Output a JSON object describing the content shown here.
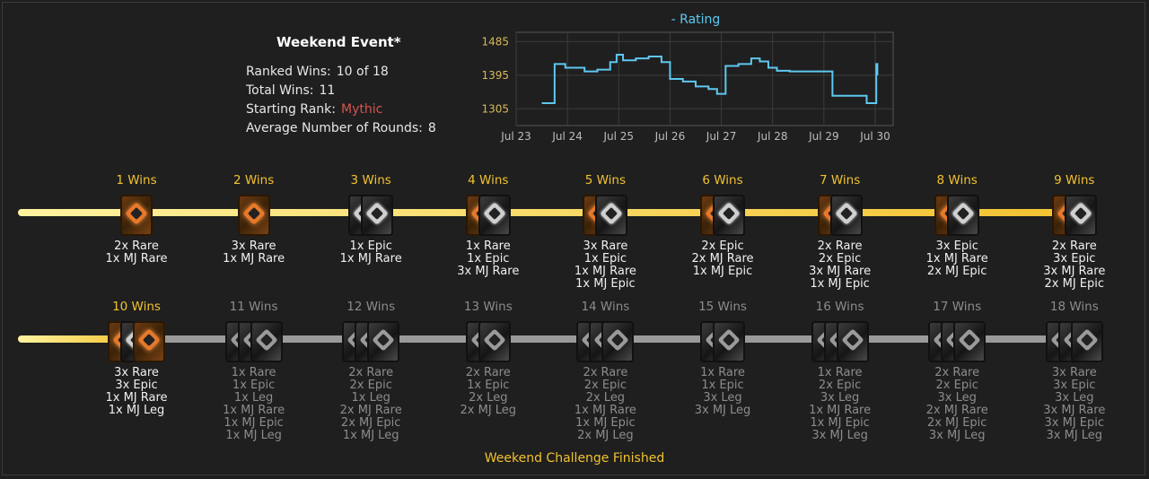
{
  "summary": {
    "title": "Weekend Event*",
    "ranked_wins_label": "Ranked Wins:",
    "ranked_wins_value": "10 of 18",
    "total_wins_label": "Total Wins:",
    "total_wins_value": "11",
    "starting_rank_label": "Starting Rank:",
    "starting_rank_value": "Mythic",
    "avg_rounds_label": "Average Number of Rounds:",
    "avg_rounds_value": "8"
  },
  "colors": {
    "accent_gold": "#f2c230",
    "rank_red": "#d9534f",
    "chart_line": "#5ec8f0",
    "track_done": "#f2c230",
    "track_todo": "#9a9a9a"
  },
  "chart_data": {
    "type": "line",
    "title": "",
    "series": [
      {
        "name": "Rating",
        "x": [
          "Jul 23 12:00",
          "Jul 23 18:00",
          "Jul 23 23:00",
          "Jul 24 02:00",
          "Jul 24 08:00",
          "Jul 24 14:00",
          "Jul 24 20:00",
          "Jul 24 23:00",
          "Jul 25 02:00",
          "Jul 25 08:00",
          "Jul 25 14:00",
          "Jul 25 20:00",
          "Jul 26 00:00",
          "Jul 26 06:00",
          "Jul 26 12:00",
          "Jul 26 18:00",
          "Jul 26 22:00",
          "Jul 27 02:00",
          "Jul 27 08:00",
          "Jul 27 14:00",
          "Jul 27 18:00",
          "Jul 27 22:00",
          "Jul 28 02:00",
          "Jul 28 08:00",
          "Jul 28 14:00",
          "Jul 28 20:00",
          "Jul 29 04:00",
          "Jul 29 12:00",
          "Jul 29 20:00",
          "Jul 30 00:00",
          "Jul 30 00:30",
          "Jul 30 01:00"
        ],
        "values": [
          1320,
          1425,
          1415,
          1415,
          1405,
          1410,
          1430,
          1450,
          1435,
          1440,
          1445,
          1430,
          1385,
          1378,
          1365,
          1358,
          1345,
          1420,
          1425,
          1440,
          1432,
          1415,
          1407,
          1405,
          1405,
          1405,
          1340,
          1340,
          1320,
          1320,
          1425,
          1395
        ]
      }
    ],
    "legend": {
      "entries": [
        "Rating"
      ],
      "placement": "top-center"
    },
    "x_ticks": [
      "Jul 23",
      "Jul 24",
      "Jul 25",
      "Jul 26",
      "Jul 27",
      "Jul 28",
      "Jul 29",
      "Jul 30"
    ],
    "y_ticks": [
      1305,
      1395,
      1485
    ],
    "ylim": [
      1260,
      1510
    ],
    "grid": true
  },
  "tracks": [
    {
      "milestones": [
        {
          "wins": "1 Wins",
          "state": "done",
          "packs": [
            "rare"
          ],
          "rewards": [
            "2x Rare",
            "1x MJ Rare"
          ]
        },
        {
          "wins": "2 Wins",
          "state": "done",
          "packs": [
            "rare"
          ],
          "rewards": [
            "3x Rare",
            "1x MJ Rare"
          ]
        },
        {
          "wins": "3 Wins",
          "state": "done",
          "packs": [
            "epic",
            "epic"
          ],
          "rewards": [
            "1x Epic",
            "1x MJ Rare"
          ]
        },
        {
          "wins": "4 Wins",
          "state": "done",
          "packs": [
            "rare",
            "epic"
          ],
          "rewards": [
            "1x Rare",
            "1x Epic",
            "3x MJ Rare"
          ]
        },
        {
          "wins": "5 Wins",
          "state": "done",
          "packs": [
            "rare",
            "epic"
          ],
          "rewards": [
            "3x Rare",
            "1x Epic",
            "1x MJ Rare",
            "1x MJ Epic"
          ]
        },
        {
          "wins": "6 Wins",
          "state": "done",
          "packs": [
            "rare",
            "epic"
          ],
          "rewards": [
            "2x Epic",
            "2x MJ Rare",
            "1x MJ Epic"
          ]
        },
        {
          "wins": "7 Wins",
          "state": "done",
          "packs": [
            "rare",
            "epic"
          ],
          "rewards": [
            "2x Rare",
            "2x Epic",
            "3x MJ Rare",
            "1x MJ Epic"
          ]
        },
        {
          "wins": "8 Wins",
          "state": "done",
          "packs": [
            "rare",
            "epic"
          ],
          "rewards": [
            "3x Epic",
            "1x MJ Rare",
            "2x MJ Epic"
          ]
        },
        {
          "wins": "9 Wins",
          "state": "done",
          "packs": [
            "rare",
            "epic"
          ],
          "rewards": [
            "2x Rare",
            "3x Epic",
            "3x MJ Rare",
            "2x MJ Epic"
          ]
        }
      ]
    },
    {
      "milestones": [
        {
          "wins": "10 Wins",
          "state": "done",
          "packs": [
            "rare",
            "epic",
            "rare"
          ],
          "rewards": [
            "3x Rare",
            "3x Epic",
            "1x MJ Rare",
            "1x MJ Leg"
          ]
        },
        {
          "wins": "11 Wins",
          "state": "todo",
          "packs": [
            "epic",
            "epic",
            "epic"
          ],
          "rewards": [
            "1x Rare",
            "1x Epic",
            "1x Leg",
            "1x MJ Rare",
            "1x MJ Epic",
            "1x MJ Leg"
          ]
        },
        {
          "wins": "12 Wins",
          "state": "todo",
          "packs": [
            "epic",
            "epic",
            "epic"
          ],
          "rewards": [
            "2x Rare",
            "2x Epic",
            "1x Leg",
            "2x MJ Rare",
            "2x MJ Epic",
            "1x MJ Leg"
          ]
        },
        {
          "wins": "13 Wins",
          "state": "todo",
          "packs": [
            "epic",
            "epic"
          ],
          "rewards": [
            "2x Rare",
            "1x Epic",
            "2x Leg",
            "2x MJ Leg"
          ]
        },
        {
          "wins": "14 Wins",
          "state": "todo",
          "packs": [
            "epic",
            "epic",
            "epic"
          ],
          "rewards": [
            "2x Rare",
            "2x Epic",
            "2x Leg",
            "1x MJ Rare",
            "1x MJ Epic",
            "2x MJ Leg"
          ]
        },
        {
          "wins": "15 Wins",
          "state": "todo",
          "packs": [
            "epic",
            "epic"
          ],
          "rewards": [
            "1x Rare",
            "1x Epic",
            "3x Leg",
            "3x MJ Leg"
          ]
        },
        {
          "wins": "16 Wins",
          "state": "todo",
          "packs": [
            "epic",
            "epic",
            "epic"
          ],
          "rewards": [
            "1x Rare",
            "2x Epic",
            "3x Leg",
            "1x MJ Rare",
            "1x MJ Epic",
            "3x MJ Leg"
          ]
        },
        {
          "wins": "17 Wins",
          "state": "todo",
          "packs": [
            "epic",
            "epic",
            "epic"
          ],
          "rewards": [
            "2x Rare",
            "2x Epic",
            "3x Leg",
            "2x MJ Rare",
            "2x MJ Epic",
            "3x MJ Leg"
          ]
        },
        {
          "wins": "18 Wins",
          "state": "todo",
          "packs": [
            "epic",
            "epic",
            "epic"
          ],
          "rewards": [
            "3x Rare",
            "3x Epic",
            "3x Leg",
            "3x MJ Rare",
            "3x MJ Epic",
            "3x MJ Leg"
          ]
        }
      ]
    }
  ],
  "status_text": "Weekend Challenge Finished"
}
